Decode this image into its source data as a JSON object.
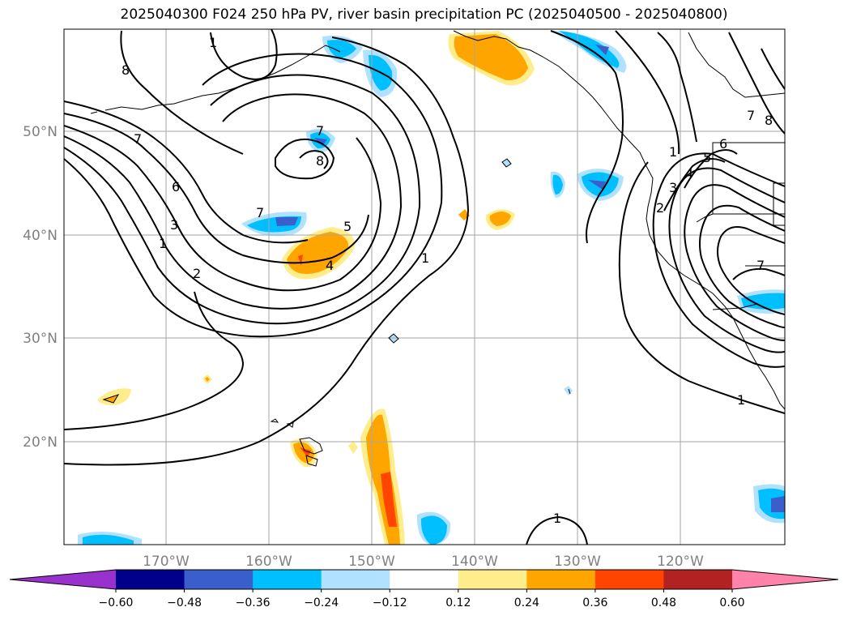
{
  "title": "2025040300 F024 250 hPa PV, river basin precipitation PC (2025040500 - 2025040800)",
  "map": {
    "lat_labels": [
      "50°N",
      "40°N",
      "30°N",
      "20°N"
    ],
    "lon_labels": [
      "170°W",
      "160°W",
      "150°W",
      "140°W",
      "130°W",
      "120°W"
    ],
    "contour_labels": [
      "1",
      "8",
      "7",
      "6",
      "3",
      "1",
      "2",
      "7",
      "8",
      "7",
      "5",
      "4",
      "1",
      "1",
      "1",
      "2",
      "3",
      "4",
      "5",
      "6",
      "7",
      "8",
      "7",
      "1"
    ]
  },
  "colorbar": {
    "ticks": [
      "−0.60",
      "−0.48",
      "−0.36",
      "−0.24",
      "−0.12",
      "0.12",
      "0.24",
      "0.36",
      "0.48",
      "0.60"
    ],
    "colors": [
      "#9932cc",
      "#00008b",
      "#3a5fcd",
      "#00bfff",
      "#b0e2ff",
      "#ffffff",
      "#ffec8b",
      "#ffa500",
      "#ff4500",
      "#b22222",
      "#ff82ab"
    ]
  },
  "colors": {
    "blue_light": "#b0e2ff",
    "blue_mid": "#00bfff",
    "blue_dark": "#3a5fcd",
    "orange_light": "#ffec8b",
    "orange_mid": "#ffa500",
    "orange_dark": "#ff4500"
  }
}
